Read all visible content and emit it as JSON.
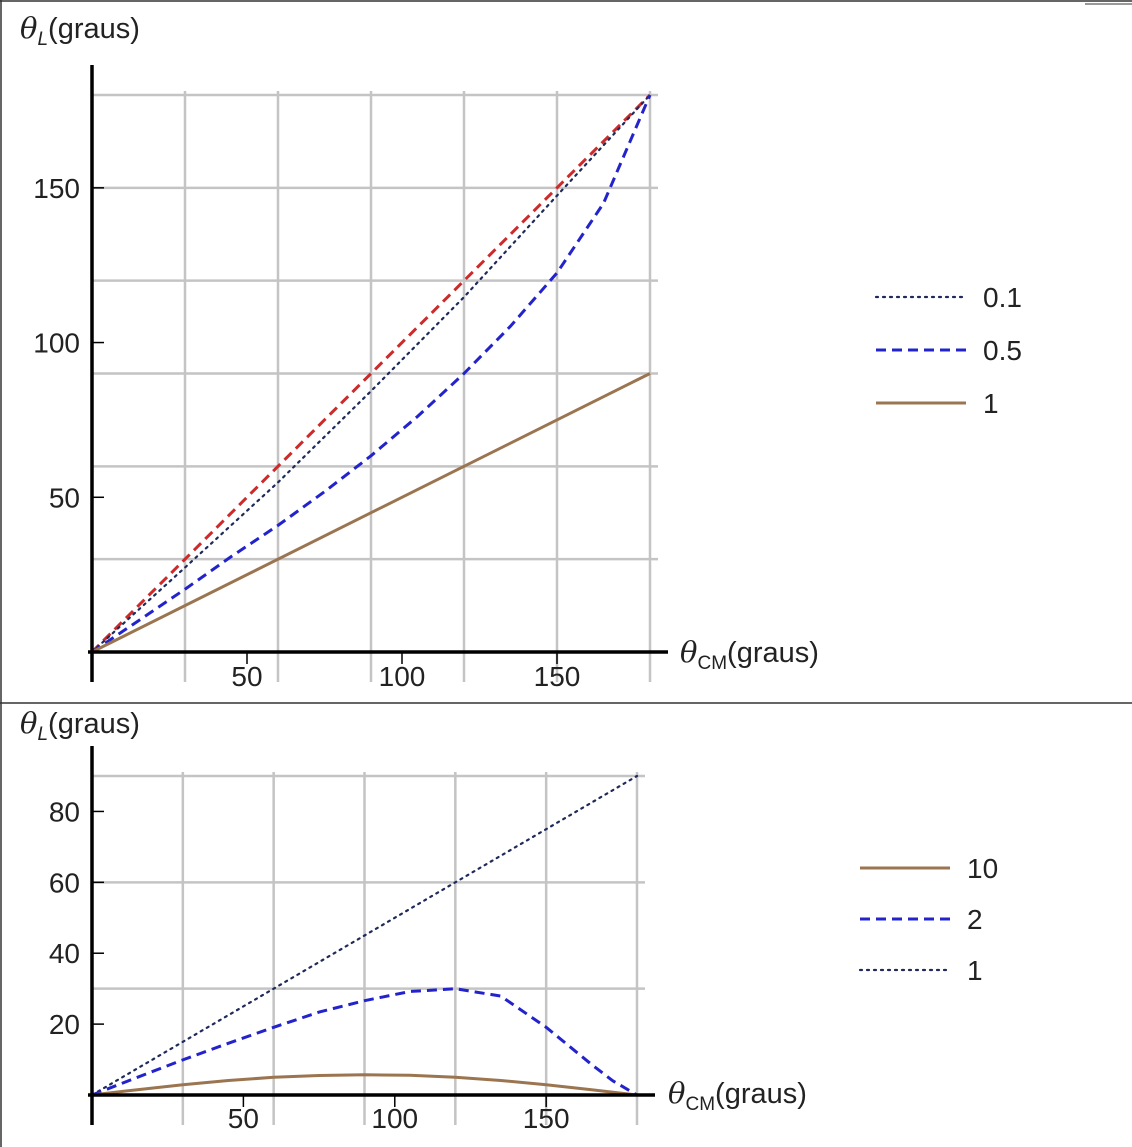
{
  "chart_data": [
    {
      "type": "line",
      "xlabel_symbol": "θ",
      "xlabel_sub": "CM",
      "xlabel_unit": "(graus)",
      "ylabel_symbol": "θ",
      "ylabel_sub": "L",
      "ylabel_unit": "(graus)",
      "xlim": [
        0,
        180
      ],
      "ylim": [
        0,
        180
      ],
      "x_ticks": [
        50,
        100,
        150
      ],
      "y_ticks": [
        50,
        100,
        150
      ],
      "gridlines_x": [
        30,
        60,
        90,
        120,
        150,
        180
      ],
      "gridlines_y": [
        30,
        60,
        90,
        120,
        150,
        180
      ],
      "grid": true,
      "legend_position": "right",
      "legend": [
        {
          "label": "0.1",
          "style": "dotted",
          "color": "#1f2a5a"
        },
        {
          "label": "0.5",
          "style": "dashed",
          "color": "#2323cc"
        },
        {
          "label": "1",
          "style": "solid",
          "color": "#9b7550"
        }
      ],
      "series": [
        {
          "style": "dashed",
          "color": "#cc2b2b",
          "x": [
            0,
            30,
            60,
            90,
            120,
            150,
            180
          ],
          "y": [
            0,
            30,
            60,
            90,
            120,
            150,
            180
          ]
        },
        {
          "name": "0.1",
          "style": "dotted",
          "color": "#1f2a5a",
          "x": [
            0,
            30,
            60,
            90,
            120,
            150,
            180
          ],
          "y": [
            0,
            27.3,
            54.8,
            84.3,
            114.7,
            147.5,
            180
          ]
        },
        {
          "name": "0.5",
          "style": "dashed",
          "color": "#2323cc",
          "x": [
            0,
            15,
            30,
            45,
            60,
            75,
            90,
            105,
            120,
            135,
            150,
            165,
            180
          ],
          "y": [
            0,
            10.1,
            20.3,
            30.9,
            40.9,
            51.8,
            63.4,
            76.1,
            90,
            105.3,
            122.5,
            145,
            180
          ]
        },
        {
          "name": "1",
          "style": "solid",
          "color": "#9b7550",
          "x": [
            0,
            180
          ],
          "y": [
            0,
            90
          ]
        }
      ]
    },
    {
      "type": "line",
      "xlabel_symbol": "θ",
      "xlabel_sub": "CM",
      "xlabel_unit": "(graus)",
      "ylabel_symbol": "θ",
      "ylabel_sub": "L",
      "ylabel_unit": "(graus)",
      "xlim": [
        0,
        180
      ],
      "ylim": [
        0,
        90
      ],
      "x_ticks": [
        50,
        100,
        150
      ],
      "y_ticks": [
        20,
        40,
        60,
        80
      ],
      "gridlines_x": [
        30,
        60,
        90,
        120,
        150,
        180
      ],
      "gridlines_y": [
        30,
        60,
        90
      ],
      "grid": true,
      "legend_position": "right",
      "legend": [
        {
          "label": "10",
          "style": "solid",
          "color": "#9b7550"
        },
        {
          "label": "2",
          "style": "dashed",
          "color": "#2323cc"
        },
        {
          "label": "1",
          "style": "dotted",
          "color": "#1f2a5a"
        }
      ],
      "series": [
        {
          "name": "1",
          "style": "dotted",
          "color": "#1f2a5a",
          "x": [
            0,
            180
          ],
          "y": [
            0,
            90
          ]
        },
        {
          "name": "2",
          "style": "dashed",
          "color": "#2323cc",
          "x": [
            0,
            15,
            30,
            45,
            60,
            75,
            90,
            105,
            120,
            135,
            150,
            165,
            172,
            180
          ],
          "y": [
            0,
            5,
            9.9,
            14.6,
            19.1,
            23.4,
            26.6,
            29.2,
            30,
            27.9,
            19.1,
            8.6,
            4,
            0
          ]
        },
        {
          "name": "10",
          "style": "solid",
          "color": "#9b7550",
          "x": [
            0,
            15,
            30,
            45,
            60,
            75,
            90,
            105,
            120,
            135,
            150,
            165,
            180
          ],
          "y": [
            0,
            1.5,
            2.9,
            4.1,
            5,
            5.5,
            5.7,
            5.6,
            5,
            4.1,
            2.9,
            1.5,
            0
          ]
        }
      ]
    }
  ]
}
